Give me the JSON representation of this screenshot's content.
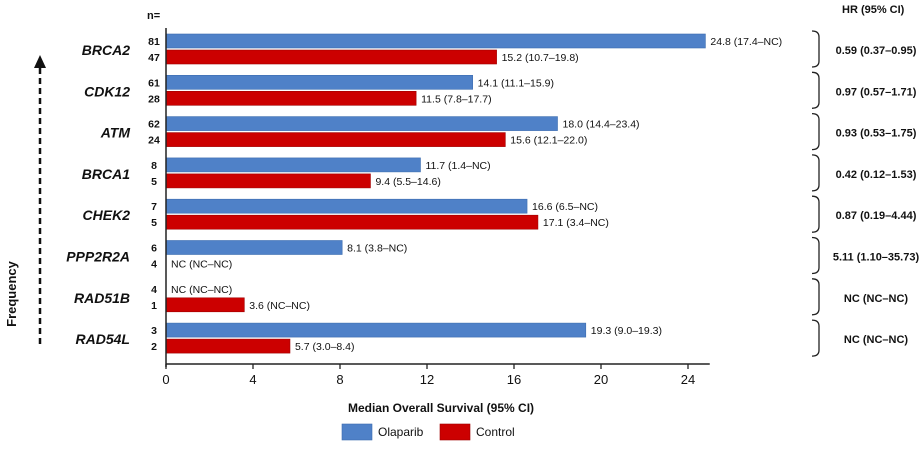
{
  "chart_data": {
    "type": "bar",
    "orientation": "horizontal",
    "categories": [
      "BRCA2",
      "CDK12",
      "ATM",
      "BRCA1",
      "CHEK2",
      "PPP2R2A",
      "RAD51B",
      "RAD54L"
    ],
    "series": [
      {
        "name": "Olaparib",
        "color": "#4f81c8",
        "n": [
          "81",
          "61",
          "62",
          "8",
          "7",
          "6",
          "4",
          "3"
        ],
        "values": [
          24.8,
          14.1,
          18.0,
          11.7,
          16.6,
          8.1,
          null,
          19.3
        ],
        "labels": [
          "24.8 (17.4–NC)",
          "14.1 (11.1–15.9)",
          "18.0 (14.4–23.4)",
          "11.7 (1.4–NC)",
          "16.6 (6.5–NC)",
          "8.1 (3.8–NC)",
          "NC (NC–NC)",
          "19.3 (9.0–19.3)"
        ]
      },
      {
        "name": "Control",
        "color": "#cc0000",
        "n": [
          "47",
          "28",
          "24",
          "5",
          "5",
          "4",
          "1",
          "2"
        ],
        "values": [
          15.2,
          11.5,
          15.6,
          9.4,
          17.1,
          null,
          3.6,
          5.7
        ],
        "labels": [
          "15.2 (10.7–19.8)",
          "11.5 (7.8–17.7)",
          "15.6 (12.1–22.0)",
          "9.4 (5.5–14.6)",
          "17.1 (3.4–NC)",
          "NC (NC–NC)",
          "3.6 (NC–NC)",
          "5.7 (3.0–8.4)"
        ]
      }
    ],
    "hr": [
      "0.59 (0.37–0.95)",
      "0.97 (0.57–1.71)",
      "0.93 (0.53–1.75)",
      "0.42 (0.12–1.53)",
      "0.87 (0.19–4.44)",
      "5.11 (1.10–35.73)",
      "NC (NC–NC)",
      "NC (NC–NC)"
    ],
    "hr_header": "HR (95% CI)",
    "n_header": "n=",
    "xlabel": "Median Overall Survival (95% CI)",
    "ylabel": "Frequency",
    "xlim": [
      0,
      25
    ],
    "xticks": [
      0,
      4,
      8,
      12,
      16,
      20,
      24
    ],
    "legend_position": "bottom"
  }
}
